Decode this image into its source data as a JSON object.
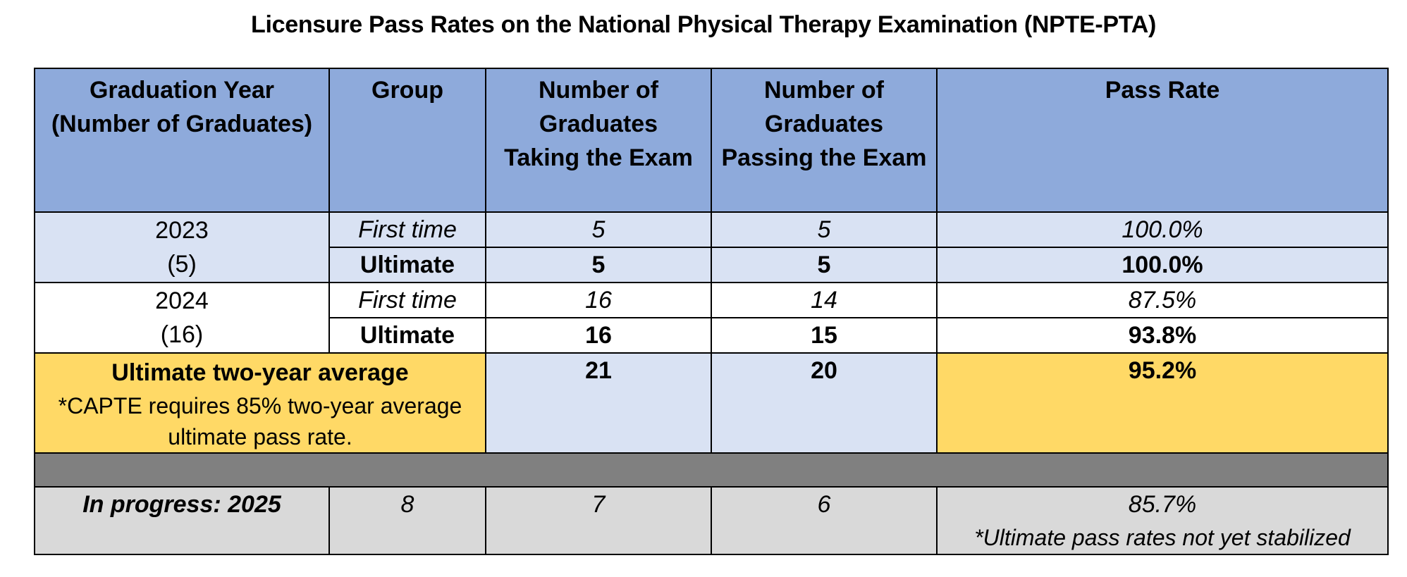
{
  "title": "Licensure Pass Rates on the National Physical Therapy Examination (NPTE-PTA)",
  "headers": {
    "col1_line1": "Graduation Year",
    "col1_line2": "(Number of Graduates)",
    "col2": "Group",
    "col3_line1": "Number of",
    "col3_line2": "Graduates",
    "col3_line3": "Taking the Exam",
    "col4_line1": "Number of",
    "col4_line2": "Graduates",
    "col4_line3": "Passing the Exam",
    "col5": "Pass Rate"
  },
  "years": [
    {
      "year": "2023",
      "graduates": "(5)",
      "first": {
        "group": "First time",
        "taking": "5",
        "passing": "5",
        "rate": "100.0%"
      },
      "ultimate": {
        "group": "Ultimate",
        "taking": "5",
        "passing": "5",
        "rate": "100.0%"
      }
    },
    {
      "year": "2024",
      "graduates": "(16)",
      "first": {
        "group": "First time",
        "taking": "16",
        "passing": "14",
        "rate": "87.5%"
      },
      "ultimate": {
        "group": "Ultimate",
        "taking": "16",
        "passing": "15",
        "rate": "93.8%"
      }
    }
  ],
  "average": {
    "label": "Ultimate two-year average",
    "note_line1": "*CAPTE requires 85% two-year average",
    "note_line2": "ultimate pass rate.",
    "taking": "21",
    "passing": "20",
    "rate": "95.2%"
  },
  "in_progress": {
    "label": "In progress: 2025",
    "group": "8",
    "taking": "7",
    "passing": "6",
    "rate": "85.7%",
    "note": "*Ultimate pass rates not yet stabilized"
  },
  "colors": {
    "header": "#8eaadb",
    "light_blue": "#d9e2f3",
    "gold": "#ffd966",
    "dark_gray": "#808080",
    "light_gray": "#d9d9d9"
  }
}
